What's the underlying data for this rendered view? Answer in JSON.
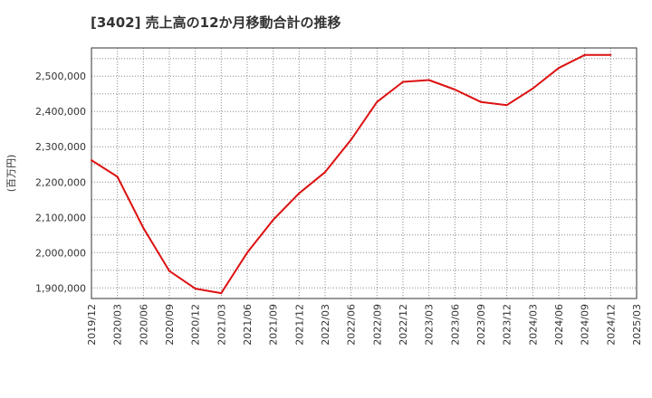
{
  "chart_data": {
    "type": "line",
    "title": "[3402]  売上高の12か月移動合計の推移",
    "ylabel": "(百万円)",
    "xlabel": "",
    "ylim": [
      1870000,
      2580000
    ],
    "y_ticks": [
      1900000,
      2000000,
      2100000,
      2200000,
      2300000,
      2400000,
      2500000
    ],
    "y_tick_labels": [
      "1,900,000",
      "2,000,000",
      "2,100,000",
      "2,200,000",
      "2,300,000",
      "2,400,000",
      "2,500,000"
    ],
    "x_tick_labels": [
      "2019/12",
      "2020/03",
      "2020/06",
      "2020/09",
      "2020/12",
      "2021/03",
      "2021/06",
      "2021/09",
      "2021/12",
      "2022/03",
      "2022/06",
      "2022/09",
      "2022/12",
      "2023/03",
      "2023/06",
      "2023/09",
      "2023/12",
      "2024/03",
      "2024/06",
      "2024/09",
      "2024/12",
      "2025/03"
    ],
    "grid": true,
    "color": "#dd1111",
    "series": [
      {
        "name": "売上高(12か月移動合計)",
        "x": [
          "2019/12",
          "2020/03",
          "2020/06",
          "2020/09",
          "2020/12",
          "2021/03",
          "2021/06",
          "2021/09",
          "2021/12",
          "2022/03",
          "2022/06",
          "2022/09",
          "2022/12",
          "2023/03",
          "2023/06",
          "2023/09",
          "2023/12",
          "2024/03",
          "2024/06",
          "2024/09",
          "2024/12"
        ],
        "values": [
          2262000,
          2215000,
          2070000,
          1948000,
          1898000,
          1885000,
          2000000,
          2093000,
          2168000,
          2228000,
          2320000,
          2427000,
          2484000,
          2489000,
          2462000,
          2427000,
          2418000,
          2465000,
          2523000,
          2560000,
          2560000
        ]
      }
    ]
  }
}
